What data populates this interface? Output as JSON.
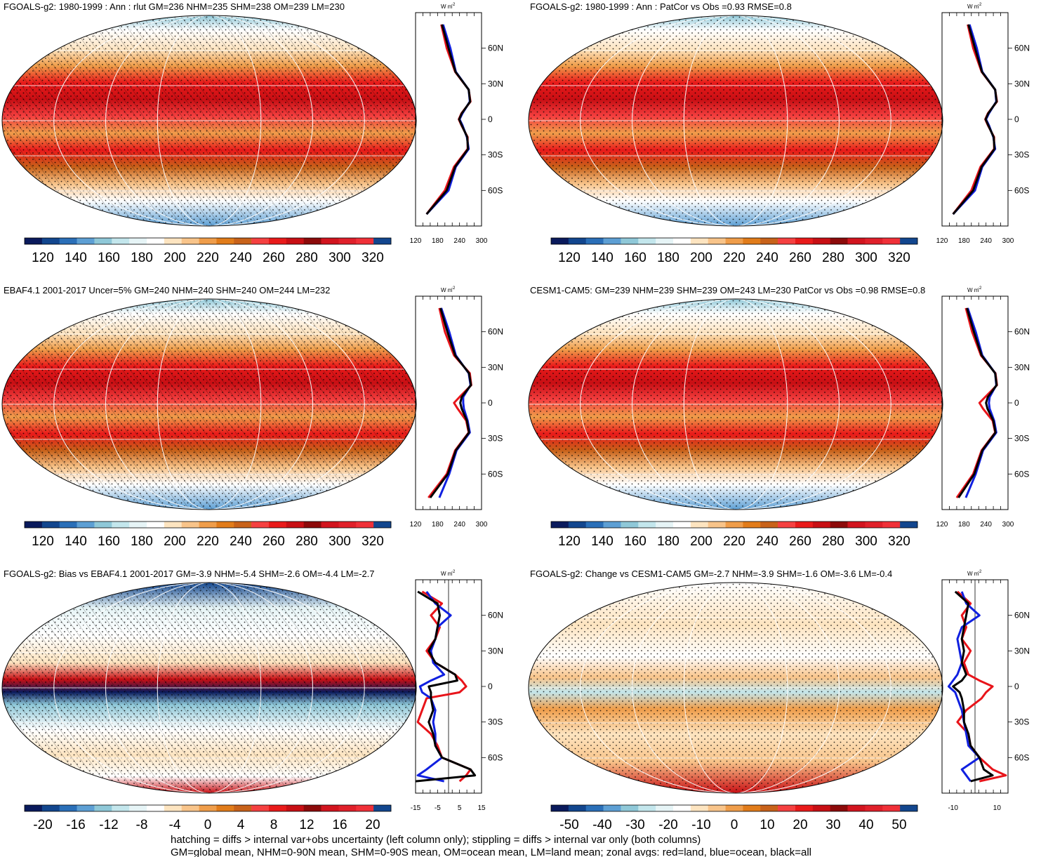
{
  "legend_colors": [
    "#0a1a5c",
    "#12468e",
    "#2a6fb8",
    "#5d9fd4",
    "#8fc8d8",
    "#c3e6ec",
    "#e6f4f6",
    "#ffffff",
    "#fde4c0",
    "#f8c48a",
    "#ef9d4a",
    "#e17c1a",
    "#c8621a",
    "#f54040",
    "#e91a1a",
    "#c80f14",
    "#8c0a0a",
    "#d2141e",
    "#e0202a",
    "#f03038",
    "#12468e"
  ],
  "panels": [
    {
      "title": "FGOALS-g2: 1980-1999 : Ann : rlut GM=236 NHM=235 SHM=238 OM=239 LM=230",
      "colorbar_labels": [
        "120",
        "140",
        "160",
        "180",
        "200",
        "220",
        "240",
        "260",
        "280",
        "300",
        "320"
      ],
      "profile_units": "W m",
      "profile_xticks": [
        "120",
        "180",
        "240",
        "300"
      ]
    },
    {
      "title": "FGOALS-g2: 1980-1999 : Ann : PatCor vs Obs =0.93 RMSE=0.8",
      "colorbar_labels": [
        "120",
        "140",
        "160",
        "180",
        "200",
        "220",
        "240",
        "260",
        "280",
        "300",
        "320"
      ],
      "profile_units": "W m",
      "profile_xticks": [
        "120",
        "180",
        "240",
        "300"
      ]
    },
    {
      "title": "EBAF4.1 2001-2017 Uncer=5% GM=240 NHM=240 SHM=240 OM=244 LM=232",
      "colorbar_labels": [
        "120",
        "140",
        "160",
        "180",
        "200",
        "220",
        "240",
        "260",
        "280",
        "300",
        "320"
      ],
      "profile_units": "W m",
      "profile_xticks": [
        "120",
        "180",
        "240",
        "300"
      ]
    },
    {
      "title": "CESM1-CAM5: GM=239 NHM=239 SHM=239 OM=243 LM=230 PatCor vs Obs =0.98 RMSE=0.8",
      "colorbar_labels": [
        "120",
        "140",
        "160",
        "180",
        "200",
        "220",
        "240",
        "260",
        "280",
        "300",
        "320"
      ],
      "profile_units": "W m",
      "profile_xticks": [
        "120",
        "180",
        "240",
        "300"
      ]
    },
    {
      "title": "FGOALS-g2: Bias vs EBAF4.1 2001-2017 GM=-3.9 NHM=-5.4 SHM=-2.6 OM=-4.4 LM=-2.7",
      "colorbar_labels": [
        "-20",
        "-16",
        "-12",
        "-8",
        "-4",
        "0",
        "4",
        "8",
        "12",
        "16",
        "20"
      ],
      "profile_units": "W m",
      "profile_xticks": [
        "-15",
        "-5",
        "5",
        "15"
      ]
    },
    {
      "title": "FGOALS-g2: Change vs CESM1-CAM5 GM=-2.7 NHM=-3.9 SHM=-1.6 OM=-3.6 LM=-0.4",
      "colorbar_labels": [
        "-50",
        "-40",
        "-30",
        "-20",
        "-10",
        "0",
        "10",
        "20",
        "30",
        "40",
        "50"
      ],
      "profile_units": "W m",
      "profile_xticks": [
        "-10",
        "10"
      ]
    }
  ],
  "lat_labels": [
    "60N",
    "30N",
    "0",
    "30S",
    "60S"
  ],
  "footer": {
    "line1": "hatching = diffs > internal var+obs uncertainty (left column only); stippling = diffs > internal var only (both columns)",
    "line2": "GM=global mean, NHM=0-90N mean, SHM=0-90S mean, OM=ocean mean, LM=land mean; zonal avgs: red=land, blue=ocean, black=all"
  },
  "chart_data": [
    {
      "type": "heatmap",
      "title": "FGOALS-g2: 1980-1999 : Ann : rlut GM=236 NHM=235 SHM=238 OM=239 LM=230",
      "colorbar_range": [
        120,
        320
      ],
      "profile_xrange": [
        120,
        300
      ],
      "profile_lat": [
        80,
        60,
        40,
        25,
        15,
        5,
        0,
        -5,
        -15,
        -25,
        -40,
        -60,
        -80
      ],
      "profile_series": [
        {
          "name": "red",
          "values": [
            190,
            205,
            228,
            265,
            270,
            245,
            238,
            245,
            262,
            262,
            225,
            200,
            150
          ]
        },
        {
          "name": "blue",
          "values": [
            195,
            215,
            230,
            265,
            268,
            248,
            240,
            248,
            260,
            265,
            230,
            210,
            150
          ]
        },
        {
          "name": "black",
          "values": [
            192,
            210,
            229,
            265,
            269,
            246,
            239,
            246,
            261,
            263,
            228,
            205,
            150
          ]
        }
      ]
    },
    {
      "type": "heatmap",
      "title": "FGOALS-g2: 1980-1999 : Ann : PatCor vs Obs =0.93 RMSE=0.8",
      "colorbar_range": [
        120,
        320
      ],
      "profile_xrange": [
        120,
        300
      ],
      "profile_lat": [
        80,
        60,
        40,
        25,
        15,
        5,
        0,
        -5,
        -15,
        -25,
        -40,
        -60,
        -80
      ],
      "profile_series": [
        {
          "name": "red",
          "values": [
            190,
            205,
            228,
            265,
            270,
            245,
            238,
            245,
            262,
            262,
            225,
            200,
            150
          ]
        },
        {
          "name": "blue",
          "values": [
            195,
            215,
            230,
            265,
            268,
            248,
            240,
            248,
            260,
            265,
            230,
            210,
            150
          ]
        },
        {
          "name": "black",
          "values": [
            192,
            210,
            229,
            265,
            269,
            246,
            239,
            246,
            261,
            263,
            228,
            205,
            150
          ]
        }
      ]
    },
    {
      "type": "heatmap",
      "title": "EBAF4.1 2001-2017 Uncer=5% GM=240 NHM=240 SHM=240 OM=244 LM=232",
      "colorbar_range": [
        120,
        320
      ],
      "profile_xrange": [
        120,
        300
      ],
      "profile_lat": [
        80,
        60,
        40,
        25,
        15,
        5,
        0,
        -5,
        -15,
        -25,
        -40,
        -60,
        -80
      ],
      "profile_series": [
        {
          "name": "red",
          "values": [
            185,
            200,
            225,
            268,
            272,
            240,
            225,
            235,
            258,
            265,
            228,
            205,
            155
          ]
        },
        {
          "name": "blue",
          "values": [
            190,
            212,
            230,
            265,
            270,
            250,
            250,
            252,
            262,
            268,
            232,
            212,
            185
          ]
        },
        {
          "name": "black",
          "values": [
            188,
            207,
            228,
            266,
            271,
            246,
            242,
            246,
            260,
            266,
            230,
            208,
            160
          ]
        }
      ]
    },
    {
      "type": "heatmap",
      "title": "CESM1-CAM5: GM=239 NHM=239 SHM=239 OM=243 LM=230 PatCor vs Obs =0.98 RMSE=0.8",
      "colorbar_range": [
        120,
        320
      ],
      "profile_xrange": [
        120,
        300
      ],
      "profile_lat": [
        80,
        60,
        40,
        25,
        15,
        5,
        0,
        -5,
        -15,
        -25,
        -40,
        -60,
        -80
      ],
      "profile_series": [
        {
          "name": "red",
          "values": [
            185,
            202,
            226,
            266,
            270,
            238,
            222,
            232,
            258,
            265,
            228,
            205,
            160
          ]
        },
        {
          "name": "blue",
          "values": [
            190,
            212,
            230,
            265,
            268,
            250,
            248,
            250,
            262,
            268,
            232,
            212,
            185
          ]
        },
        {
          "name": "black",
          "values": [
            188,
            207,
            228,
            265,
            269,
            245,
            240,
            244,
            260,
            266,
            230,
            208,
            165
          ]
        }
      ]
    },
    {
      "type": "heatmap",
      "title": "FGOALS-g2: Bias vs EBAF4.1 2001-2017 GM=-3.9 NHM=-5.4 SHM=-2.6 OM=-4.4 LM=-2.7",
      "colorbar_range": [
        -20,
        20
      ],
      "profile_xrange": [
        -15,
        15
      ],
      "profile_lat": [
        80,
        70,
        60,
        50,
        40,
        30,
        20,
        10,
        5,
        0,
        -5,
        -10,
        -20,
        -30,
        -40,
        -50,
        -60,
        -70,
        -75,
        -80
      ],
      "profile_series": [
        {
          "name": "red",
          "values": [
            -12,
            -3,
            -8,
            -4,
            -6,
            -10,
            -6,
            3,
            6,
            8,
            5,
            -10,
            -12,
            -14,
            -8,
            -5,
            -3,
            10,
            8,
            5
          ]
        },
        {
          "name": "blue",
          "values": [
            -10,
            -6,
            1,
            -5,
            -6,
            -8,
            -7,
            -2,
            -8,
            -13,
            -12,
            -8,
            -6,
            -7,
            -6,
            -6,
            -3,
            -10,
            -14,
            -2
          ]
        },
        {
          "name": "black",
          "values": [
            -14,
            -5,
            -4,
            -5,
            -6,
            -9,
            -6,
            3,
            4,
            -9,
            -8,
            -8,
            -7,
            -9,
            -7,
            -6,
            -3,
            10,
            12,
            -15
          ]
        }
      ]
    },
    {
      "type": "heatmap",
      "title": "FGOALS-g2: Change vs CESM1-CAM5 GM=-2.7 NHM=-3.9 SHM=-1.6 OM=-3.6 LM=-0.4",
      "colorbar_range": [
        -50,
        50
      ],
      "profile_xrange": [
        -15,
        15
      ],
      "profile_lat": [
        80,
        70,
        60,
        50,
        40,
        30,
        20,
        10,
        5,
        0,
        -5,
        -10,
        -20,
        -30,
        -40,
        -50,
        -60,
        -70,
        -75,
        -80
      ],
      "profile_series": [
        {
          "name": "red",
          "values": [
            -8,
            -2,
            -6,
            -4,
            -6,
            -2,
            -5,
            -3,
            2,
            8,
            5,
            3,
            -4,
            -8,
            -3,
            -2,
            2,
            8,
            14,
            2
          ]
        },
        {
          "name": "blue",
          "values": [
            -6,
            -4,
            2,
            -6,
            -8,
            -7,
            -6,
            -8,
            -10,
            -12,
            -9,
            -8,
            -6,
            -5,
            -4,
            -3,
            2,
            -6,
            -4,
            -2
          ]
        },
        {
          "name": "black",
          "values": [
            -9,
            -3,
            -4,
            -5,
            -6,
            -5,
            -6,
            -4,
            -6,
            -10,
            -7,
            -6,
            -5,
            -5,
            -3,
            -2,
            2,
            4,
            8,
            -2
          ]
        }
      ]
    }
  ]
}
